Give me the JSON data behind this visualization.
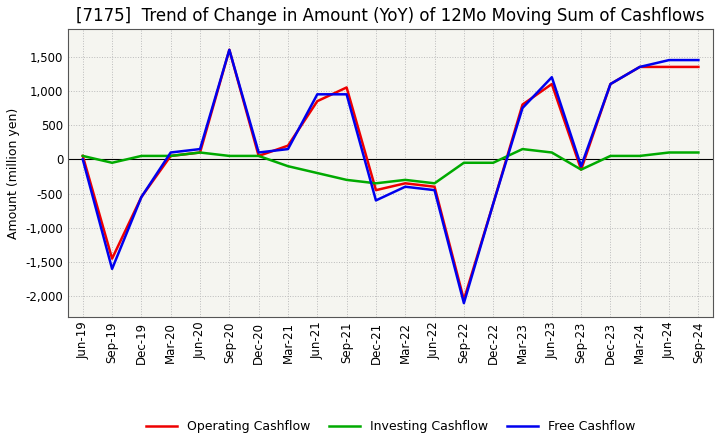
{
  "title": "[7175]  Trend of Change in Amount (YoY) of 12Mo Moving Sum of Cashflows",
  "ylabel": "Amount (million yen)",
  "x_labels": [
    "Jun-19",
    "Sep-19",
    "Dec-19",
    "Mar-20",
    "Jun-20",
    "Sep-20",
    "Dec-20",
    "Mar-21",
    "Jun-21",
    "Sep-21",
    "Dec-21",
    "Mar-22",
    "Jun-22",
    "Sep-22",
    "Dec-22",
    "Mar-23",
    "Jun-23",
    "Sep-23",
    "Dec-23",
    "Mar-24",
    "Jun-24",
    "Sep-24"
  ],
  "operating": [
    50,
    -1450,
    -550,
    50,
    100,
    1600,
    50,
    200,
    850,
    1050,
    -450,
    -350,
    -400,
    -2050,
    -650,
    800,
    1100,
    -150,
    1100,
    1350,
    1350,
    1350
  ],
  "investing": [
    50,
    -50,
    50,
    50,
    100,
    50,
    50,
    -100,
    -200,
    -300,
    -350,
    -300,
    -350,
    -50,
    -50,
    150,
    100,
    -150,
    50,
    50,
    100,
    100
  ],
  "free": [
    0,
    -1600,
    -550,
    100,
    150,
    1600,
    100,
    150,
    950,
    950,
    -600,
    -400,
    -450,
    -2100,
    -650,
    750,
    1200,
    -100,
    1100,
    1350,
    1450,
    1450
  ],
  "operating_color": "#ee0000",
  "investing_color": "#00aa00",
  "free_color": "#0000ee",
  "ylim": [
    -2300,
    1900
  ],
  "yticks": [
    -2000,
    -1500,
    -1000,
    -500,
    0,
    500,
    1000,
    1500
  ],
  "plot_bg_color": "#f5f5f0",
  "fig_bg_color": "#ffffff",
  "grid_color": "#bbbbbb",
  "title_fontsize": 12,
  "axis_label_fontsize": 9,
  "tick_fontsize": 8.5,
  "legend_fontsize": 9,
  "line_width": 1.8
}
